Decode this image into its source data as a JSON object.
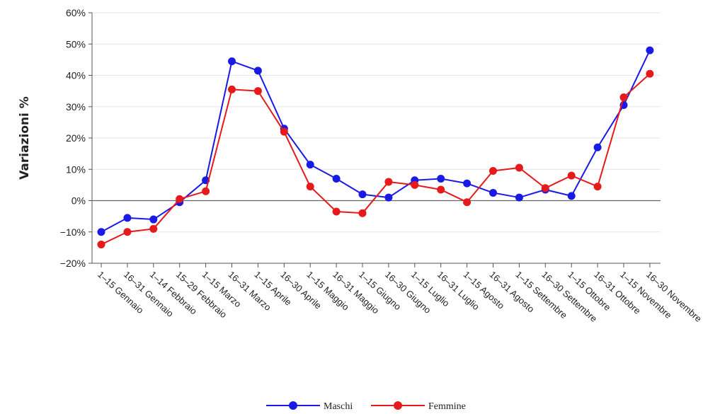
{
  "chart_data": {
    "type": "line",
    "ylabel": "Variazioni %",
    "xlabel": "",
    "title": "",
    "ylim": [
      -20,
      60
    ],
    "yticks": [
      -20,
      -10,
      0,
      10,
      20,
      30,
      40,
      50,
      60
    ],
    "ytick_labels": [
      "−20%",
      "−10%",
      "0%",
      "10%",
      "20%",
      "30%",
      "40%",
      "50%",
      "60%"
    ],
    "grid": true,
    "legend_position": "bottom-center",
    "categories": [
      "1–15 Gennaio",
      "16–31 Gennaio",
      "1–14 Febbraio",
      "15–29 Febbraio",
      "1–15 Marzo",
      "16–31 Marzo",
      "1–15 Aprile",
      "16–30 Aprile",
      "1–15 Maggio",
      "16–31 Maggio",
      "1–15 Giugno",
      "16–30 Giugno",
      "1–15 Luglio",
      "16–31 Luglio",
      "1–15 Agosto",
      "16–31 Agosto",
      "1–15 Settembre",
      "16–30 Settembre",
      "1–15 Ottobre",
      "16–31 Ottobre",
      "1–15 Novembre",
      "16–30 Novembre"
    ],
    "series": [
      {
        "name": "Maschi",
        "color": "#1a1ae6",
        "values": [
          -10,
          -5.5,
          -6,
          -0.5,
          6.5,
          44.5,
          41.5,
          23,
          11.5,
          7,
          2,
          1,
          6.5,
          7,
          5.5,
          2.5,
          1,
          3.5,
          1.5,
          17,
          30.5,
          48
        ]
      },
      {
        "name": "Femmine",
        "color": "#e61a1a",
        "values": [
          -14,
          -10,
          -9,
          0.5,
          3,
          35.5,
          35,
          22,
          4.5,
          -3.5,
          -4,
          6,
          5,
          3.5,
          -0.5,
          9.5,
          10.5,
          4,
          8,
          4.5,
          33,
          40.5
        ]
      }
    ]
  }
}
